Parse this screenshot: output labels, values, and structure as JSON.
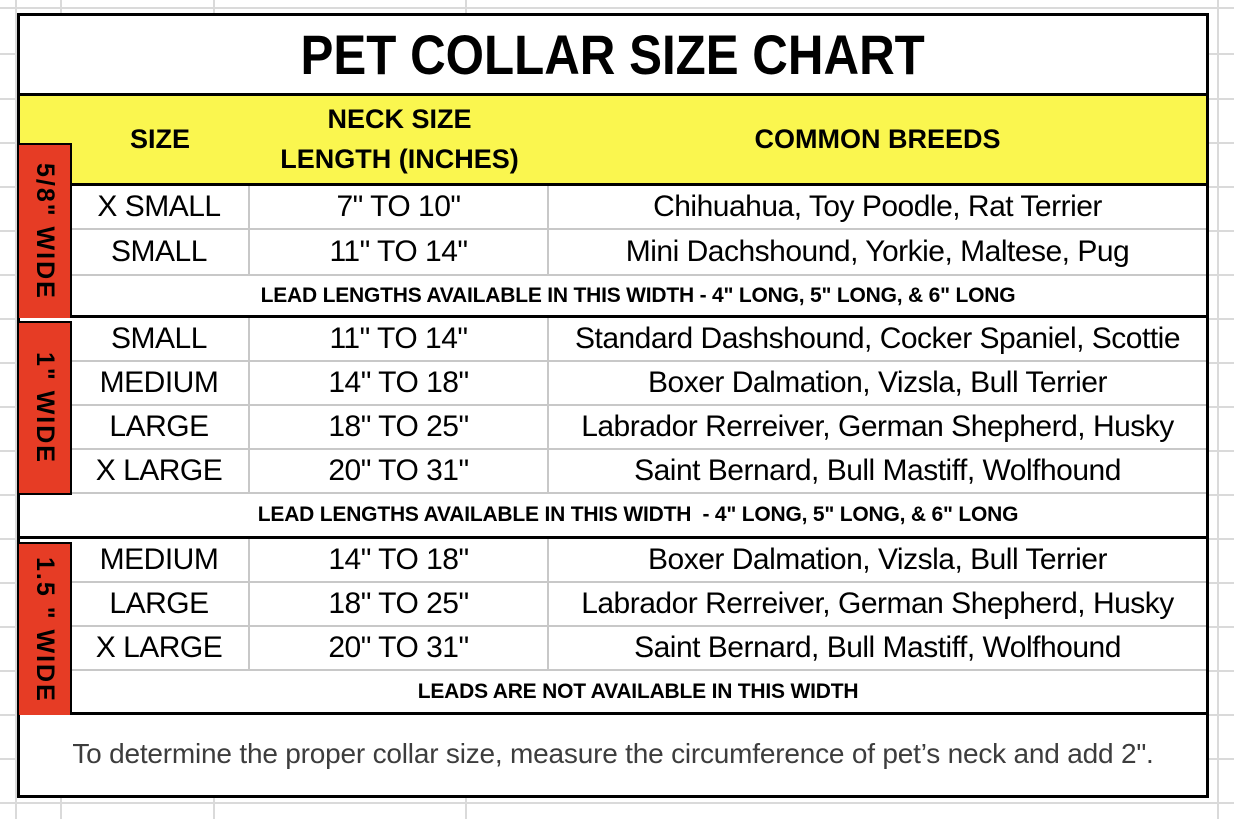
{
  "title": "PET COLLAR SIZE CHART",
  "header": {
    "size_label": "SIZE",
    "neck_label_line1": "NECK SIZE",
    "neck_label_line2": "LENGTH (INCHES)",
    "breeds_label": "COMMON BREEDS"
  },
  "sections": [
    {
      "width_label": "5/8\" WIDE",
      "rows": [
        {
          "size": "X SMALL",
          "neck_range": "7\" TO 10\"",
          "breeds": "Chihuahua, Toy Poodle, Rat Terrier"
        },
        {
          "size": "SMALL",
          "neck_range": "11\" TO 14\"",
          "breeds": "Mini Dachshound, Yorkie, Maltese, Pug"
        }
      ],
      "note": "LEAD LENGTHS AVAILABLE IN THIS WIDTH - 4\" LONG, 5\" LONG, & 6\" LONG"
    },
    {
      "width_label": "1\" WIDE",
      "rows": [
        {
          "size": "SMALL",
          "neck_range": "11\" TO 14\"",
          "breeds": "Standard Dashshound, Cocker Spaniel, Scottie"
        },
        {
          "size": "MEDIUM",
          "neck_range": "14\" TO 18\"",
          "breeds": "Boxer Dalmation, Vizsla, Bull Terrier"
        },
        {
          "size": "LARGE",
          "neck_range": "18\" TO 25\"",
          "breeds": "Labrador Rerreiver, German Shepherd, Husky"
        },
        {
          "size": "X LARGE",
          "neck_range": "20\" TO 31\"",
          "breeds": "Saint Bernard, Bull Mastiff, Wolfhound"
        }
      ],
      "note": "LEAD LENGTHS AVAILABLE IN THIS WIDTH  - 4\" LONG, 5\" LONG, & 6\" LONG"
    },
    {
      "width_label": "1.5 \" WIDE",
      "rows": [
        {
          "size": "MEDIUM",
          "neck_range": "14\" TO 18\"",
          "breeds": "Boxer Dalmation, Vizsla, Bull Terrier"
        },
        {
          "size": "LARGE",
          "neck_range": "18\" TO 25\"",
          "breeds": "Labrador Rerreiver, German Shepherd, Husky"
        },
        {
          "size": "X LARGE",
          "neck_range": "20\" TO 31\"",
          "breeds": "Saint Bernard, Bull Mastiff, Wolfhound"
        }
      ],
      "note": "LEADS ARE NOT AVAILABLE IN THIS WIDTH"
    }
  ],
  "footer_note": "To determine the proper collar size, measure the circumference of pet’s neck and add 2\".",
  "colors": {
    "header_bg": "#FAF64F",
    "width_strip_bg": "#E63C25",
    "grid_line": "#C8C8C8",
    "sheet_grid": "#DADADA",
    "footer_text": "#3D3D3D"
  }
}
